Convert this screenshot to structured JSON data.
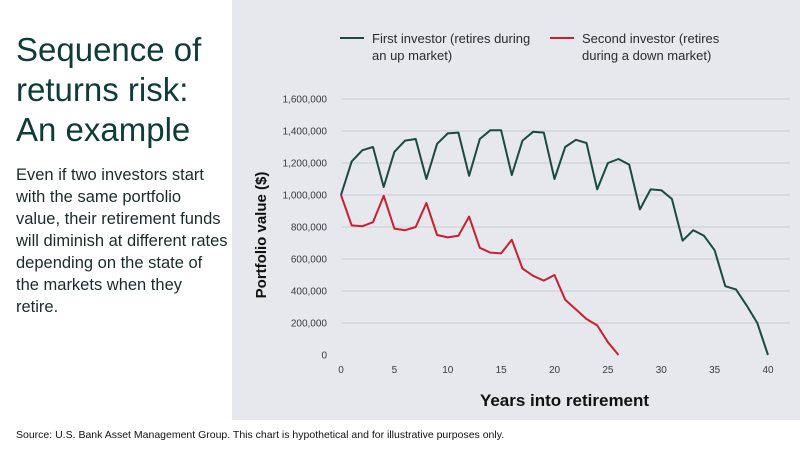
{
  "title": "Sequence of returns risk: An example",
  "body": "Even if two investors start with the same portfolio value, their retirement funds will diminish at different rates depending on the state of the markets when they retire.",
  "source": "Source: U.S. Bank Asset Management Group. This chart is hypothetical and for illustrative purposes only.",
  "colors": {
    "chart_bg": "#e6e8ee",
    "first_investor": "#1b4a40",
    "second_investor": "#c8202e",
    "title": "#0f3b38"
  },
  "chart_data": {
    "type": "line",
    "title": "",
    "xlabel": "Years into retirement",
    "ylabel": "Portfolio value ($)",
    "xlim": [
      0,
      40
    ],
    "ylim": [
      0,
      1600000
    ],
    "x_ticks": [
      0,
      5,
      10,
      15,
      20,
      25,
      30,
      35,
      40
    ],
    "y_ticks": [
      0,
      200000,
      400000,
      600000,
      800000,
      1000000,
      1200000,
      1400000,
      1600000
    ],
    "y_tick_labels": [
      "0",
      "200,000",
      "400,000",
      "600,000",
      "800,000",
      "1,000,000",
      "1,200,000",
      "1,400,000",
      "1,600,000"
    ],
    "grid": true,
    "legend_position": "top",
    "series": [
      {
        "name": "First investor (retires during an up market)",
        "color": "#1b4a40",
        "x": [
          0,
          1,
          2,
          3,
          4,
          5,
          6,
          7,
          8,
          9,
          10,
          11,
          12,
          13,
          14,
          15,
          16,
          17,
          18,
          19,
          20,
          21,
          22,
          23,
          24,
          25,
          26,
          27,
          28,
          29,
          30,
          31,
          32,
          33,
          34,
          35,
          36,
          37,
          38,
          39,
          40
        ],
        "values": [
          1000000,
          1210000,
          1280000,
          1300000,
          1050000,
          1270000,
          1340000,
          1350000,
          1100000,
          1320000,
          1385000,
          1390000,
          1120000,
          1350000,
          1405000,
          1405000,
          1125000,
          1340000,
          1395000,
          1390000,
          1100000,
          1300000,
          1345000,
          1325000,
          1035000,
          1200000,
          1225000,
          1190000,
          910000,
          1035000,
          1030000,
          975000,
          715000,
          780000,
          745000,
          655000,
          430000,
          410000,
          310000,
          200000,
          0
        ]
      },
      {
        "name": "Second investor (retires during a down market)",
        "color": "#c8202e",
        "x": [
          0,
          1,
          2,
          3,
          4,
          5,
          6,
          7,
          8,
          9,
          10,
          11,
          12,
          13,
          14,
          15,
          16,
          17,
          18,
          19,
          20,
          21,
          22,
          23,
          24,
          25,
          26
        ],
        "values": [
          1000000,
          810000,
          805000,
          830000,
          995000,
          790000,
          780000,
          800000,
          950000,
          750000,
          735000,
          745000,
          865000,
          670000,
          640000,
          635000,
          720000,
          540000,
          495000,
          465000,
          500000,
          345000,
          285000,
          225000,
          185000,
          80000,
          0
        ]
      }
    ]
  }
}
